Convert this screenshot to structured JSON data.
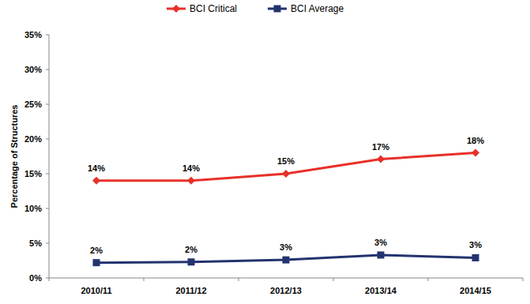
{
  "chart_data": {
    "type": "line",
    "y_label": "Percentage of Structures",
    "categories": [
      "2010/11",
      "2011/12",
      "2012/13",
      "2013/14",
      "2014/15"
    ],
    "series": [
      {
        "name": "BCI Critical",
        "color": "#e8302a",
        "marker": "diamond",
        "line_style": "solid",
        "values": [
          14,
          14,
          15,
          17.1,
          18
        ],
        "value_labels": [
          "14%",
          "14%",
          "15%",
          "17%",
          "18%"
        ]
      },
      {
        "name": "BCI Average",
        "color": "#23336f",
        "marker": "square",
        "line_style": "solid",
        "values": [
          2.2,
          2.3,
          2.6,
          3.3,
          2.9
        ],
        "value_labels": [
          "2%",
          "2%",
          "3%",
          "3%",
          "3%"
        ]
      }
    ],
    "ylim": [
      0,
      35
    ],
    "yticks": [
      {
        "value": 0,
        "label": "0%"
      },
      {
        "value": 5,
        "label": "5%"
      },
      {
        "value": 10,
        "label": "10%"
      },
      {
        "value": 15,
        "label": "15%"
      },
      {
        "value": 20,
        "label": "20%"
      },
      {
        "value": 25,
        "label": "25%"
      },
      {
        "value": 30,
        "label": "30%"
      },
      {
        "value": 35,
        "label": "35%"
      }
    ],
    "grid": false,
    "legend": "top",
    "data_labels": true
  }
}
